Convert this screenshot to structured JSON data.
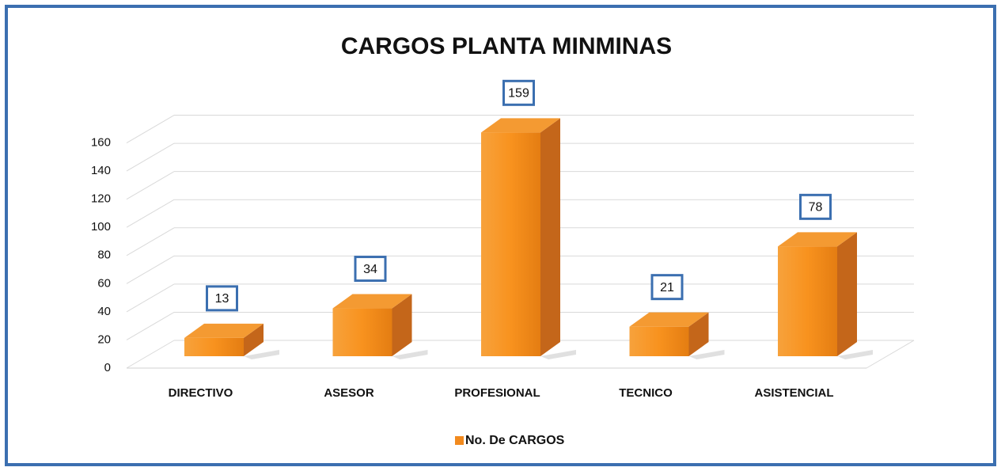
{
  "chart_data": {
    "type": "bar3d",
    "title": "CARGOS PLANTA MINMINAS",
    "categories": [
      "DIRECTIVO",
      "ASESOR",
      "PROFESIONAL",
      "TECNICO",
      "ASISTENCIAL"
    ],
    "series": [
      {
        "name": "No. De CARGOS",
        "color": "#f28a1e",
        "values": [
          13,
          34,
          159,
          21,
          78
        ]
      }
    ],
    "ylim": [
      0,
      180
    ],
    "yticks": [
      0,
      20,
      40,
      60,
      80,
      100,
      120,
      140,
      160
    ],
    "grid": true,
    "legend": "bottom"
  }
}
